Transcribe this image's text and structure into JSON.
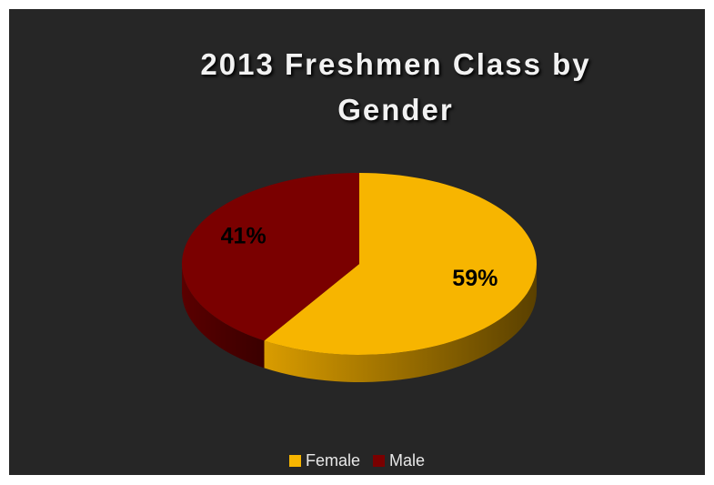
{
  "chart_data": {
    "type": "pie",
    "title": "2013 Freshmen Class by Gender",
    "categories": [
      "Female",
      "Male"
    ],
    "values": [
      59,
      41
    ],
    "value_labels": [
      "59%",
      "41%"
    ],
    "colors": [
      "#f7b500",
      "#7a0000"
    ],
    "legend": "bottom"
  }
}
